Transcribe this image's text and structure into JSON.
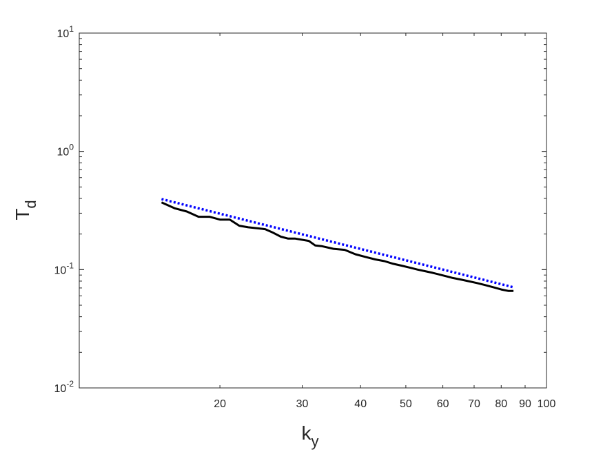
{
  "chart_data": {
    "type": "line",
    "xlabel": {
      "base": "k",
      "sub": "y"
    },
    "ylabel": {
      "base": "T",
      "sub": "d"
    },
    "xscale": "log",
    "yscale": "log",
    "xlim": [
      10,
      100
    ],
    "ylim": [
      0.01,
      10
    ],
    "grid": false,
    "legend": "none",
    "x_tick_labels": [
      "20",
      "30",
      "40",
      "50",
      "60",
      "70",
      "80",
      "90",
      "100"
    ],
    "x_tick_values": [
      20,
      30,
      40,
      50,
      60,
      70,
      80,
      90,
      100
    ],
    "y_tick_labels": [
      {
        "base": "10",
        "exp": "-2",
        "value": 0.01
      },
      {
        "base": "10",
        "exp": "-1",
        "value": 0.1
      },
      {
        "base": "10",
        "exp": "0",
        "value": 1
      },
      {
        "base": "10",
        "exp": "1",
        "value": 10
      }
    ],
    "series": [
      {
        "style": "solid",
        "color": "#000000",
        "points": [
          [
            15,
            0.37
          ],
          [
            16,
            0.33
          ],
          [
            17,
            0.31
          ],
          [
            18,
            0.28
          ],
          [
            19,
            0.28
          ],
          [
            20,
            0.265
          ],
          [
            21,
            0.265
          ],
          [
            22,
            0.235
          ],
          [
            23,
            0.228
          ],
          [
            25,
            0.22
          ],
          [
            26,
            0.205
          ],
          [
            27,
            0.19
          ],
          [
            28,
            0.183
          ],
          [
            29,
            0.183
          ],
          [
            31,
            0.175
          ],
          [
            32,
            0.16
          ],
          [
            33,
            0.158
          ],
          [
            35,
            0.15
          ],
          [
            37,
            0.147
          ],
          [
            39,
            0.135
          ],
          [
            41,
            0.128
          ],
          [
            43,
            0.122
          ],
          [
            45,
            0.118
          ],
          [
            47,
            0.112
          ],
          [
            49,
            0.108
          ],
          [
            51,
            0.104
          ],
          [
            53,
            0.1
          ],
          [
            55,
            0.097
          ],
          [
            57,
            0.094
          ],
          [
            59,
            0.091
          ],
          [
            61,
            0.088
          ],
          [
            63,
            0.085
          ],
          [
            66,
            0.082
          ],
          [
            68,
            0.08
          ],
          [
            71,
            0.077
          ],
          [
            74,
            0.074
          ],
          [
            77,
            0.071
          ],
          [
            80,
            0.068
          ],
          [
            83,
            0.066
          ],
          [
            85,
            0.066
          ]
        ]
      },
      {
        "style": "dotted",
        "color": "#0000ff",
        "points": [
          [
            15,
            0.395
          ],
          [
            85,
            0.071
          ]
        ]
      }
    ]
  }
}
